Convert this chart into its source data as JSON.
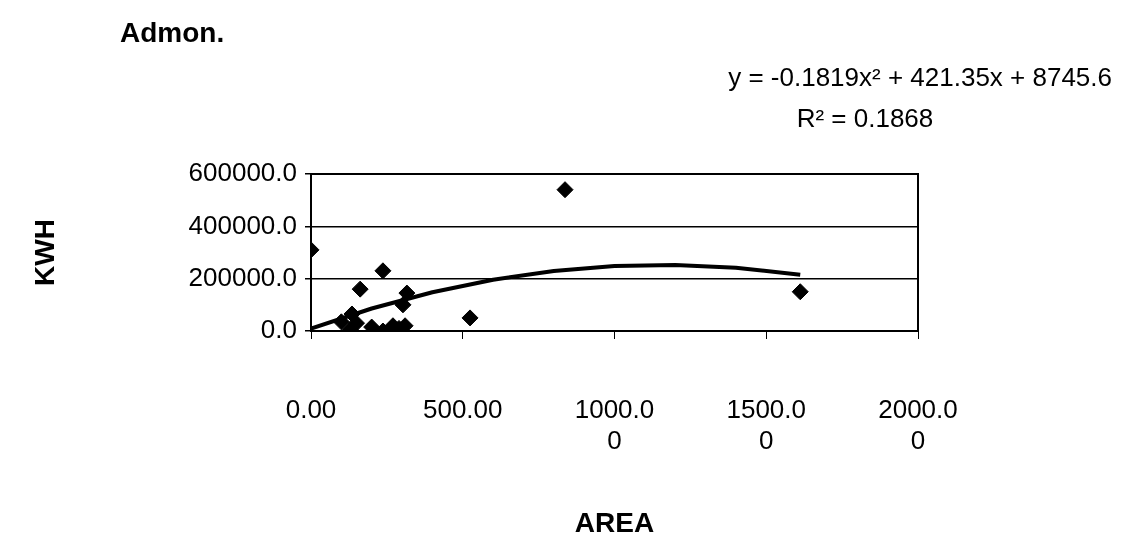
{
  "chart_data": {
    "type": "scatter",
    "title": "Admon.",
    "xlabel": "AREA",
    "ylabel": "KWH",
    "series": [
      {
        "color": "#000000",
        "marker": "diamond",
        "x": [
          0,
          837,
          1612,
          237,
          162,
          316,
          524,
          303,
          135,
          129,
          237,
          200,
          270,
          310,
          290,
          150,
          100
        ],
        "values": [
          310000,
          540000,
          150000,
          230000,
          160000,
          145000,
          50000,
          100000,
          65000,
          5000,
          0,
          15000,
          20000,
          20000,
          10000,
          30000,
          35000
        ]
      },
      {
        "type": "line",
        "color": "#000000",
        "marker": "none",
        "line_style": "solid",
        "x": [
          0,
          200,
          400,
          600,
          800,
          1000,
          1200,
          1400,
          1612
        ],
        "values": [
          9000,
          86000,
          148000,
          196000,
          229000,
          248000,
          252000,
          242000,
          215000
        ]
      }
    ],
    "xlim": [
      0,
      2000
    ],
    "xticks": [
      {
        "value": 0,
        "label": "0.00"
      },
      {
        "value": 500,
        "label": "500.00"
      },
      {
        "value": 1000,
        "label": "1000.00"
      },
      {
        "value": 1500,
        "label": "1500.00"
      },
      {
        "value": 2000,
        "label": "2000.00"
      }
    ],
    "ylim": [
      0,
      600000
    ],
    "yticks": [
      {
        "value": 0,
        "label": "0.0"
      },
      {
        "value": 200000,
        "label": "200000.0"
      },
      {
        "value": 400000,
        "label": "400000.0"
      },
      {
        "value": 600000,
        "label": "600000.0"
      }
    ],
    "grid": "y",
    "legend": false,
    "annotations": [
      "y = -0.1819x² + 421.35x + 8745.6",
      "R² = 0.1868"
    ]
  }
}
